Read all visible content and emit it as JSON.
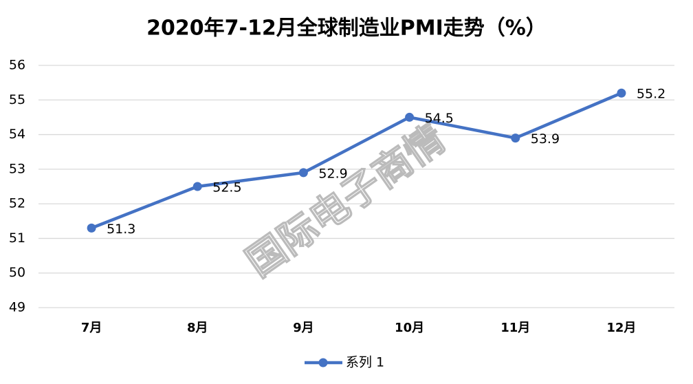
{
  "chart_data": {
    "type": "line",
    "title": "2020年7-12月全球制造业PMI走势（%）",
    "categories": [
      "7月",
      "8月",
      "9月",
      "10月",
      "11月",
      "12月"
    ],
    "series": [
      {
        "name": "系列 1",
        "color": "#4472c4",
        "values": [
          51.3,
          52.5,
          52.9,
          54.5,
          53.9,
          55.2
        ]
      }
    ],
    "ylim": [
      49,
      56
    ],
    "yticks": [
      49,
      50,
      51,
      52,
      53,
      54,
      55,
      56
    ],
    "grid": true,
    "legend": "bottom",
    "watermark": "国际电子商情"
  }
}
